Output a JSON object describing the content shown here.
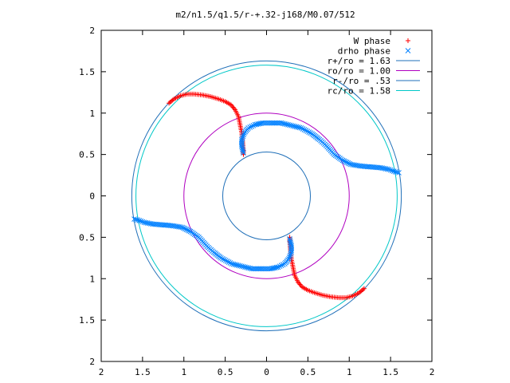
{
  "chart_data": {
    "type": "scatter",
    "title": "m2/n1.5/q1.5/r-+.32-j168/M0.07/512",
    "xlabel": "",
    "ylabel": "",
    "xlim": [
      -2,
      2
    ],
    "ylim": [
      -2,
      2
    ],
    "x_tick_labels": [
      "2",
      "1.5",
      "1",
      "0.5",
      "0",
      "0.5",
      "1",
      "1.5",
      "2"
    ],
    "y_tick_labels": [
      "2",
      "1.5",
      "1",
      "0.5",
      "0",
      "0.5",
      "1",
      "1.5",
      "2"
    ],
    "grid": false,
    "legend_position": "top-right",
    "colors": {
      "w_phase": "#ff0000",
      "drho_phase": "#0080ff",
      "r_plus": "#1f6fb8",
      "r_o": "#b000c0",
      "r_minus": "#1f6fb8",
      "r_c": "#00c8c8"
    },
    "series": [
      {
        "name": "W phase",
        "kind": "points",
        "marker": "+",
        "points": [
          [
            -1.18,
            1.12
          ],
          [
            -1.12,
            1.17
          ],
          [
            -1.04,
            1.21
          ],
          [
            -0.96,
            1.23
          ],
          [
            -0.88,
            1.23
          ],
          [
            -0.78,
            1.22
          ],
          [
            -0.68,
            1.2
          ],
          [
            -0.58,
            1.17
          ],
          [
            -0.5,
            1.14
          ],
          [
            -0.43,
            1.1
          ],
          [
            -0.38,
            1.04
          ],
          [
            -0.34,
            0.96
          ],
          [
            -0.32,
            0.86
          ],
          [
            -0.3,
            0.76
          ],
          [
            -0.29,
            0.66
          ],
          [
            -0.28,
            0.55
          ],
          [
            -0.28,
            0.5
          ],
          [
            1.18,
            -1.12
          ],
          [
            1.12,
            -1.17
          ],
          [
            1.04,
            -1.21
          ],
          [
            0.96,
            -1.23
          ],
          [
            0.88,
            -1.23
          ],
          [
            0.78,
            -1.22
          ],
          [
            0.68,
            -1.2
          ],
          [
            0.58,
            -1.17
          ],
          [
            0.5,
            -1.14
          ],
          [
            0.43,
            -1.1
          ],
          [
            0.38,
            -1.04
          ],
          [
            0.34,
            -0.96
          ],
          [
            0.32,
            -0.86
          ],
          [
            0.3,
            -0.76
          ],
          [
            0.29,
            -0.66
          ],
          [
            0.28,
            -0.55
          ],
          [
            0.28,
            -0.5
          ]
        ]
      },
      {
        "name": "drho phase",
        "kind": "points",
        "marker": "x",
        "points": [
          [
            -0.28,
            0.52
          ],
          [
            -0.3,
            0.6
          ],
          [
            -0.3,
            0.68
          ],
          [
            -0.27,
            0.76
          ],
          [
            -0.22,
            0.82
          ],
          [
            -0.14,
            0.86
          ],
          [
            -0.05,
            0.88
          ],
          [
            0.05,
            0.88
          ],
          [
            0.18,
            0.88
          ],
          [
            0.3,
            0.85
          ],
          [
            0.42,
            0.82
          ],
          [
            0.55,
            0.75
          ],
          [
            0.64,
            0.68
          ],
          [
            0.72,
            0.61
          ],
          [
            0.82,
            0.5
          ],
          [
            0.92,
            0.43
          ],
          [
            1.02,
            0.38
          ],
          [
            1.14,
            0.36
          ],
          [
            1.26,
            0.35
          ],
          [
            1.38,
            0.34
          ],
          [
            1.48,
            0.32
          ],
          [
            1.56,
            0.29
          ],
          [
            1.6,
            0.28
          ],
          [
            0.28,
            -0.52
          ],
          [
            0.3,
            -0.6
          ],
          [
            0.3,
            -0.68
          ],
          [
            0.27,
            -0.76
          ],
          [
            0.22,
            -0.82
          ],
          [
            0.14,
            -0.86
          ],
          [
            0.05,
            -0.88
          ],
          [
            -0.05,
            -0.88
          ],
          [
            -0.18,
            -0.88
          ],
          [
            -0.3,
            -0.85
          ],
          [
            -0.42,
            -0.82
          ],
          [
            -0.55,
            -0.75
          ],
          [
            -0.64,
            -0.68
          ],
          [
            -0.72,
            -0.61
          ],
          [
            -0.82,
            -0.5
          ],
          [
            -0.92,
            -0.43
          ],
          [
            -1.02,
            -0.38
          ],
          [
            -1.14,
            -0.36
          ],
          [
            -1.26,
            -0.35
          ],
          [
            -1.38,
            -0.34
          ],
          [
            -1.48,
            -0.32
          ],
          [
            -1.56,
            -0.29
          ],
          [
            -1.6,
            -0.28
          ]
        ]
      },
      {
        "name": "r+/ro = 1.63",
        "kind": "circle",
        "radius": 1.63,
        "color_key": "r_plus"
      },
      {
        "name": "ro/ro = 1.00",
        "kind": "circle",
        "radius": 1.0,
        "color_key": "r_o"
      },
      {
        "name": "r-/ro = .53",
        "kind": "circle",
        "radius": 0.53,
        "color_key": "r_minus"
      },
      {
        "name": "rc/ro = 1.58",
        "kind": "circle",
        "radius": 1.58,
        "color_key": "r_c"
      }
    ]
  }
}
